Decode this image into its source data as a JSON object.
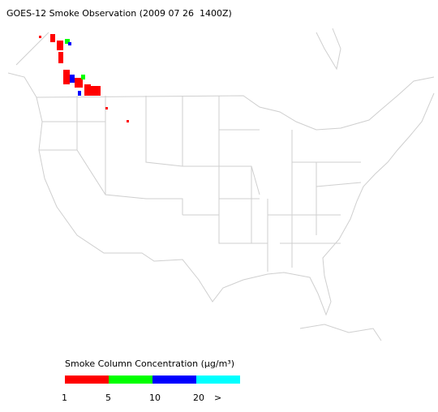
{
  "title": "GOES-12 Smoke Observation (2009 07 26  1400Z)",
  "legend": {
    "title": "Smoke Column Concentration (μg/m³)",
    "colors": [
      "#ff0000",
      "#00ff00",
      "#0000ff",
      "#00ffff"
    ],
    "labels": [
      "1",
      "5",
      "10",
      "20",
      ">"
    ]
  }
}
